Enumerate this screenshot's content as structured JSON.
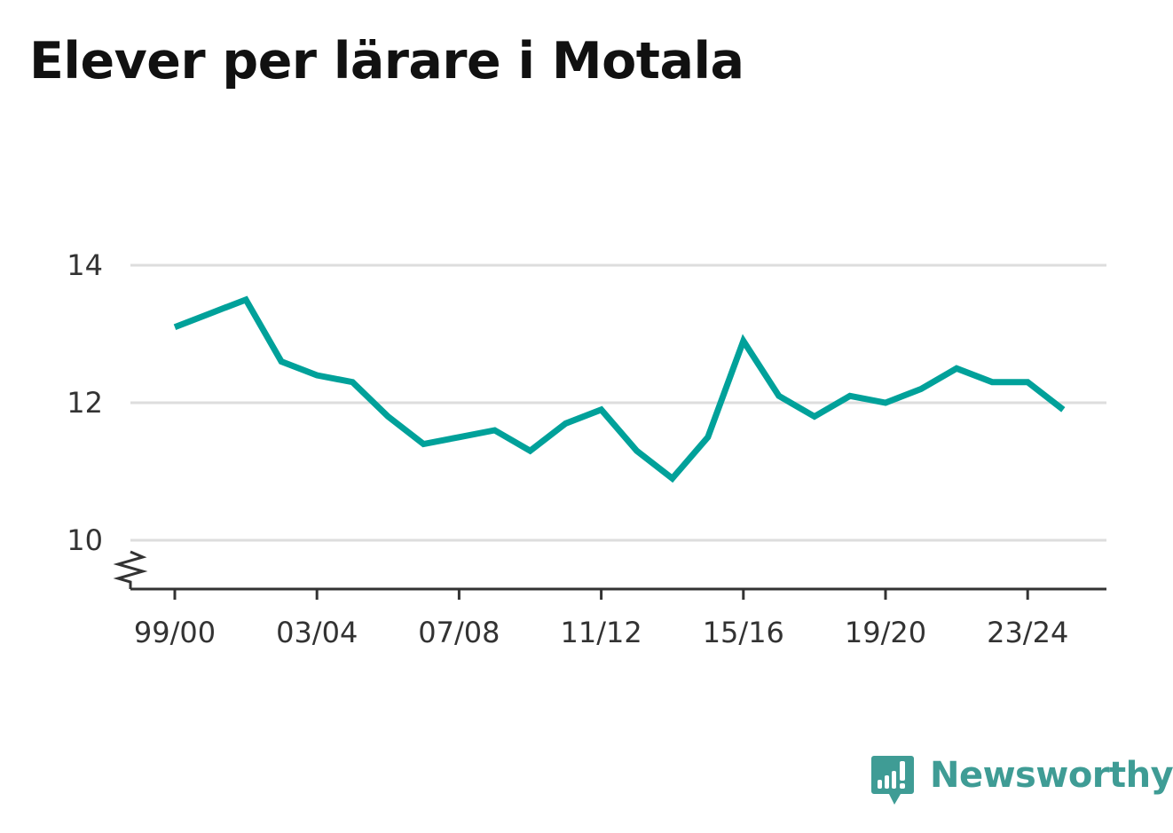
{
  "title": "Elever per lärare i Motala",
  "brand": {
    "name": "Newsworthy",
    "color": "#3f9c95",
    "icon": "bar-chart-speech-bubble-icon"
  },
  "chart_data": {
    "type": "line",
    "title": "Elever per lärare i Motala",
    "xlabel": "",
    "ylabel": "",
    "x_ticks": [
      "99/00",
      "03/04",
      "07/08",
      "11/12",
      "15/16",
      "19/20",
      "23/24"
    ],
    "y_ticks": [
      10,
      12,
      14
    ],
    "ylim": [
      9.3,
      14
    ],
    "y_axis_break": true,
    "grid": true,
    "legend": "none",
    "series": [
      {
        "color": "#00a19a",
        "x": [
          "99/00",
          "00/01",
          "01/02",
          "02/03",
          "03/04",
          "04/05",
          "05/06",
          "06/07",
          "07/08",
          "08/09",
          "09/10",
          "10/11",
          "11/12",
          "12/13",
          "13/14",
          "14/15",
          "15/16",
          "16/17",
          "17/18",
          "18/19",
          "19/20",
          "20/21",
          "21/22",
          "22/23",
          "23/24",
          "24/25"
        ],
        "values": [
          13.1,
          13.3,
          13.5,
          12.6,
          12.4,
          12.3,
          11.8,
          11.4,
          11.5,
          11.6,
          11.3,
          11.7,
          11.9,
          11.3,
          10.9,
          11.5,
          12.9,
          12.1,
          11.8,
          12.1,
          12.0,
          12.2,
          12.5,
          12.3,
          12.3,
          11.9
        ]
      }
    ]
  }
}
